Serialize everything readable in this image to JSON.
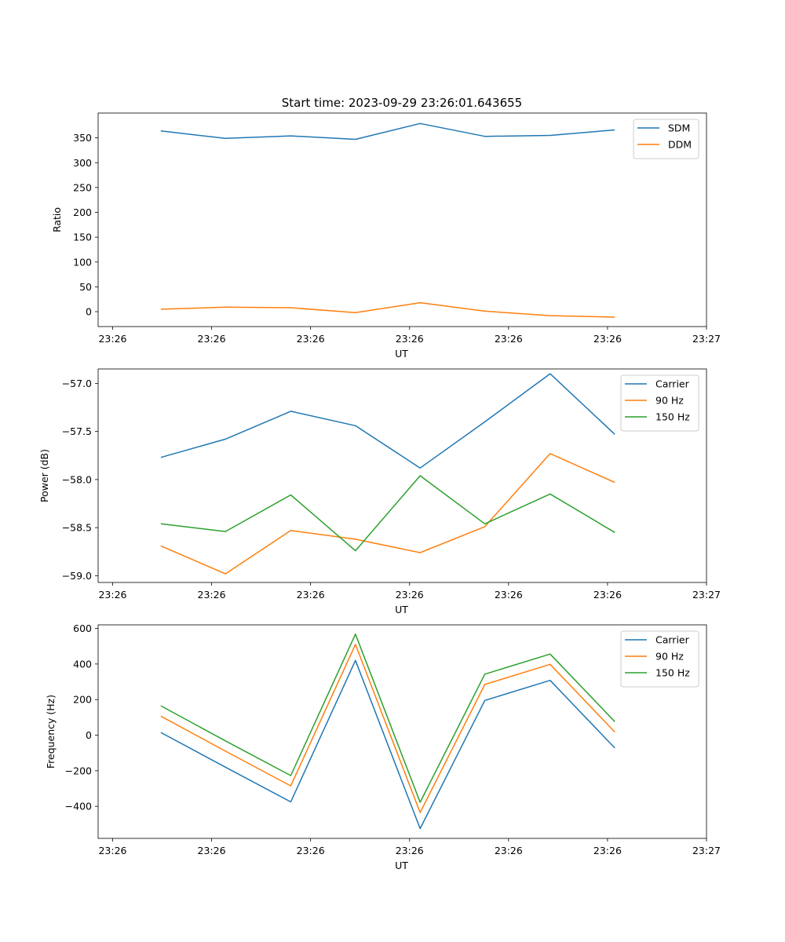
{
  "title": "Start time: 2023-09-29 23:26:01.643655",
  "chart_data": [
    {
      "type": "line",
      "xlabel": "UT",
      "ylabel": "Ratio",
      "xlim": [
        -0.22,
        9.0
      ],
      "ylim": [
        -30,
        400
      ],
      "x_ticks": [
        0,
        1.5,
        3,
        4.5,
        6,
        7.5,
        9
      ],
      "x_tick_labels": [
        "23:26",
        "23:26",
        "23:26",
        "23:26",
        "23:26",
        "23:26",
        "23:27"
      ],
      "y_ticks": [
        0,
        50,
        100,
        150,
        200,
        250,
        300,
        350
      ],
      "y_tick_labels": [
        "0",
        "50",
        "100",
        "150",
        "200",
        "250",
        "300",
        "350"
      ],
      "x": [
        0.73,
        1.71,
        2.7,
        3.68,
        4.66,
        5.64,
        6.63,
        7.61
      ],
      "series": [
        {
          "name": "SDM",
          "color": "#1f77b4",
          "values": [
            364,
            349,
            354,
            347,
            379,
            353,
            355,
            366
          ]
        },
        {
          "name": "DDM",
          "color": "#ff7f0e",
          "values": [
            5,
            9,
            8,
            -2,
            18,
            1,
            -8,
            -11
          ]
        }
      ],
      "legend": "top-right"
    },
    {
      "type": "line",
      "xlabel": "UT",
      "ylabel": "Power (dB)",
      "xlim": [
        -0.22,
        9.0
      ],
      "ylim": [
        -59.07,
        -56.85
      ],
      "x_ticks": [
        0,
        1.5,
        3,
        4.5,
        6,
        7.5,
        9
      ],
      "x_tick_labels": [
        "23:26",
        "23:26",
        "23:26",
        "23:26",
        "23:26",
        "23:26",
        "23:27"
      ],
      "y_ticks": [
        -59.0,
        -58.5,
        -58.0,
        -57.5,
        -57.0
      ],
      "y_tick_labels": [
        "−59.0",
        "−58.5",
        "−58.0",
        "−57.5",
        "−57.0"
      ],
      "x": [
        0.73,
        1.71,
        2.7,
        3.68,
        4.66,
        5.64,
        6.63,
        7.61
      ],
      "series": [
        {
          "name": "Carrier",
          "color": "#1f77b4",
          "values": [
            -57.77,
            -57.58,
            -57.29,
            -57.44,
            -57.88,
            -57.4,
            -56.9,
            -57.53
          ]
        },
        {
          "name": "90 Hz",
          "color": "#ff7f0e",
          "values": [
            -58.69,
            -58.98,
            -58.53,
            -58.62,
            -58.76,
            -58.49,
            -57.73,
            -58.03
          ]
        },
        {
          "name": "150 Hz",
          "color": "#2ca02c",
          "values": [
            -58.46,
            -58.54,
            -58.16,
            -58.74,
            -57.96,
            -58.46,
            -58.15,
            -58.55
          ]
        }
      ],
      "legend": "top-right"
    },
    {
      "type": "line",
      "xlabel": "UT",
      "ylabel": "Frequency (Hz)",
      "xlim": [
        -0.22,
        9.0
      ],
      "ylim": [
        -580,
        620
      ],
      "x_ticks": [
        0,
        1.5,
        3,
        4.5,
        6,
        7.5,
        9
      ],
      "x_tick_labels": [
        "23:26",
        "23:26",
        "23:26",
        "23:26",
        "23:26",
        "23:26",
        "23:27"
      ],
      "y_ticks": [
        -400,
        -200,
        0,
        200,
        400,
        600
      ],
      "y_tick_labels": [
        "−400",
        "−200",
        "0",
        "200",
        "400",
        "600"
      ],
      "x": [
        0.73,
        1.71,
        2.7,
        3.68,
        4.66,
        5.64,
        6.63,
        7.61
      ],
      "series": [
        {
          "name": "Carrier",
          "color": "#1f77b4",
          "values": [
            15,
            -180,
            -375,
            420,
            -525,
            195,
            308,
            -72
          ]
        },
        {
          "name": "90 Hz",
          "color": "#ff7f0e",
          "values": [
            107,
            -90,
            -285,
            510,
            -435,
            285,
            398,
            18
          ]
        },
        {
          "name": "150 Hz",
          "color": "#2ca02c",
          "values": [
            165,
            -32,
            -227,
            568,
            -377,
            343,
            456,
            76
          ]
        }
      ],
      "legend": "top-right"
    }
  ]
}
